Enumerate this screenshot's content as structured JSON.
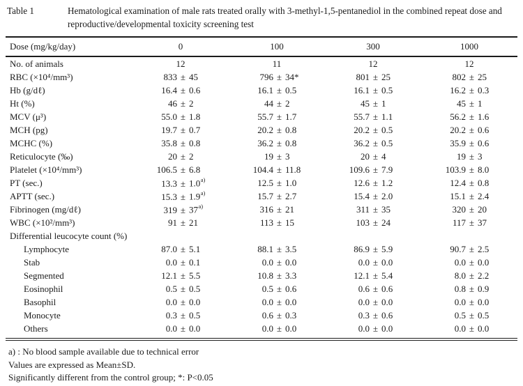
{
  "caption": {
    "label": "Table 1",
    "text": "Hematological examination of male rats treated orally with 3-methyl-1,5-pentanediol in the combined repeat dose and reproductive/developmental toxicity screening test"
  },
  "table": {
    "dose_row": {
      "label": "Dose (mg/kg/day)",
      "columns": [
        "0",
        "100",
        "300",
        "1000"
      ]
    },
    "rows": [
      {
        "label": "No. of animals",
        "kind": "plain",
        "indent": false,
        "values": [
          "12",
          "11",
          "12",
          "12"
        ]
      },
      {
        "label": "RBC (×10⁴/mm³)",
        "kind": "meansd",
        "indent": false,
        "values": [
          {
            "mean": "833",
            "sd": "45"
          },
          {
            "mean": "796",
            "sd": "34*"
          },
          {
            "mean": "801",
            "sd": "25"
          },
          {
            "mean": "802",
            "sd": "25"
          }
        ]
      },
      {
        "label": "Hb (g/dℓ)",
        "kind": "meansd",
        "indent": false,
        "values": [
          {
            "mean": "16.4",
            "sd": "0.6"
          },
          {
            "mean": "16.1",
            "sd": "0.5"
          },
          {
            "mean": "16.1",
            "sd": "0.5"
          },
          {
            "mean": "16.2",
            "sd": "0.3"
          }
        ]
      },
      {
        "label": "Ht (%)",
        "kind": "meansd",
        "indent": false,
        "values": [
          {
            "mean": "46",
            "sd": "2"
          },
          {
            "mean": "44",
            "sd": "2"
          },
          {
            "mean": "45",
            "sd": "1"
          },
          {
            "mean": "45",
            "sd": "1"
          }
        ]
      },
      {
        "label": "MCV (μ³)",
        "kind": "meansd",
        "indent": false,
        "values": [
          {
            "mean": "55.0",
            "sd": "1.8"
          },
          {
            "mean": "55.7",
            "sd": "1.7"
          },
          {
            "mean": "55.7",
            "sd": "1.1"
          },
          {
            "mean": "56.2",
            "sd": "1.6"
          }
        ]
      },
      {
        "label": "MCH (pg)",
        "kind": "meansd",
        "indent": false,
        "values": [
          {
            "mean": "19.7",
            "sd": "0.7"
          },
          {
            "mean": "20.2",
            "sd": "0.8"
          },
          {
            "mean": "20.2",
            "sd": "0.5"
          },
          {
            "mean": "20.2",
            "sd": "0.6"
          }
        ]
      },
      {
        "label": "MCHC (%)",
        "kind": "meansd",
        "indent": false,
        "values": [
          {
            "mean": "35.8",
            "sd": "0.8"
          },
          {
            "mean": "36.2",
            "sd": "0.8"
          },
          {
            "mean": "36.2",
            "sd": "0.5"
          },
          {
            "mean": "35.9",
            "sd": "0.6"
          }
        ]
      },
      {
        "label": "Reticulocyte (‰)",
        "kind": "meansd",
        "indent": false,
        "values": [
          {
            "mean": "20",
            "sd": "2"
          },
          {
            "mean": "19",
            "sd": "3"
          },
          {
            "mean": "20",
            "sd": "4"
          },
          {
            "mean": "19",
            "sd": "3"
          }
        ]
      },
      {
        "label": "Platelet (×10⁴/mm³)",
        "kind": "meansd",
        "indent": false,
        "values": [
          {
            "mean": "106.5",
            "sd": "6.8"
          },
          {
            "mean": "104.4",
            "sd": "11.8"
          },
          {
            "mean": "109.6",
            "sd": "7.9"
          },
          {
            "mean": "103.9",
            "sd": "8.0"
          }
        ]
      },
      {
        "label": "PT (sec.)",
        "kind": "meansd",
        "indent": false,
        "values": [
          {
            "mean": "13.3",
            "sd": "1.0",
            "sup": "a)"
          },
          {
            "mean": "12.5",
            "sd": "1.0"
          },
          {
            "mean": "12.6",
            "sd": "1.2"
          },
          {
            "mean": "12.4",
            "sd": "0.8"
          }
        ]
      },
      {
        "label": "APTT (sec.)",
        "kind": "meansd",
        "indent": false,
        "values": [
          {
            "mean": "15.3",
            "sd": "1.9",
            "sup": "a)"
          },
          {
            "mean": "15.7",
            "sd": "2.7"
          },
          {
            "mean": "15.4",
            "sd": "2.0"
          },
          {
            "mean": "15.1",
            "sd": "2.4"
          }
        ]
      },
      {
        "label": "Fibrinogen (mg/dℓ)",
        "kind": "meansd",
        "indent": false,
        "values": [
          {
            "mean": "319",
            "sd": "37",
            "sup": "a)"
          },
          {
            "mean": "316",
            "sd": "21"
          },
          {
            "mean": "311",
            "sd": "35"
          },
          {
            "mean": "320",
            "sd": "20"
          }
        ]
      },
      {
        "label": "WBC (×10²/mm³)",
        "kind": "meansd",
        "indent": false,
        "values": [
          {
            "mean": "91",
            "sd": "21"
          },
          {
            "mean": "113",
            "sd": "15"
          },
          {
            "mean": "103",
            "sd": "24"
          },
          {
            "mean": "117",
            "sd": "37"
          }
        ]
      },
      {
        "label": "Differential leucocyte count (%)",
        "kind": "section",
        "indent": false,
        "values": []
      },
      {
        "label": "Lymphocyte",
        "kind": "meansd",
        "indent": true,
        "values": [
          {
            "mean": "87.0",
            "sd": "5.1"
          },
          {
            "mean": "88.1",
            "sd": "3.5"
          },
          {
            "mean": "86.9",
            "sd": "5.9"
          },
          {
            "mean": "90.7",
            "sd": "2.5"
          }
        ]
      },
      {
        "label": "Stab",
        "kind": "meansd",
        "indent": true,
        "values": [
          {
            "mean": "0.0",
            "sd": "0.1"
          },
          {
            "mean": "0.0",
            "sd": "0.0"
          },
          {
            "mean": "0.0",
            "sd": "0.0"
          },
          {
            "mean": "0.0",
            "sd": "0.0"
          }
        ]
      },
      {
        "label": "Segmented",
        "kind": "meansd",
        "indent": true,
        "values": [
          {
            "mean": "12.1",
            "sd": "5.5"
          },
          {
            "mean": "10.8",
            "sd": "3.3"
          },
          {
            "mean": "12.1",
            "sd": "5.4"
          },
          {
            "mean": "8.0",
            "sd": "2.2"
          }
        ]
      },
      {
        "label": "Eosinophil",
        "kind": "meansd",
        "indent": true,
        "values": [
          {
            "mean": "0.5",
            "sd": "0.5"
          },
          {
            "mean": "0.5",
            "sd": "0.6"
          },
          {
            "mean": "0.6",
            "sd": "0.6"
          },
          {
            "mean": "0.8",
            "sd": "0.9"
          }
        ]
      },
      {
        "label": "Basophil",
        "kind": "meansd",
        "indent": true,
        "values": [
          {
            "mean": "0.0",
            "sd": "0.0"
          },
          {
            "mean": "0.0",
            "sd": "0.0"
          },
          {
            "mean": "0.0",
            "sd": "0.0"
          },
          {
            "mean": "0.0",
            "sd": "0.0"
          }
        ]
      },
      {
        "label": "Monocyte",
        "kind": "meansd",
        "indent": true,
        "values": [
          {
            "mean": "0.3",
            "sd": "0.5"
          },
          {
            "mean": "0.6",
            "sd": "0.3"
          },
          {
            "mean": "0.3",
            "sd": "0.6"
          },
          {
            "mean": "0.5",
            "sd": "0.5"
          }
        ]
      },
      {
        "label": "Others",
        "kind": "meansd",
        "indent": true,
        "values": [
          {
            "mean": "0.0",
            "sd": "0.0"
          },
          {
            "mean": "0.0",
            "sd": "0.0"
          },
          {
            "mean": "0.0",
            "sd": "0.0"
          },
          {
            "mean": "0.0",
            "sd": "0.0"
          }
        ]
      }
    ],
    "plus_minus": "±"
  },
  "footnotes": [
    "a) : No blood sample available due to technical error",
    "Values are expressed as Mean±SD.",
    "Significantly different from the control group;  *: P<0.05"
  ]
}
